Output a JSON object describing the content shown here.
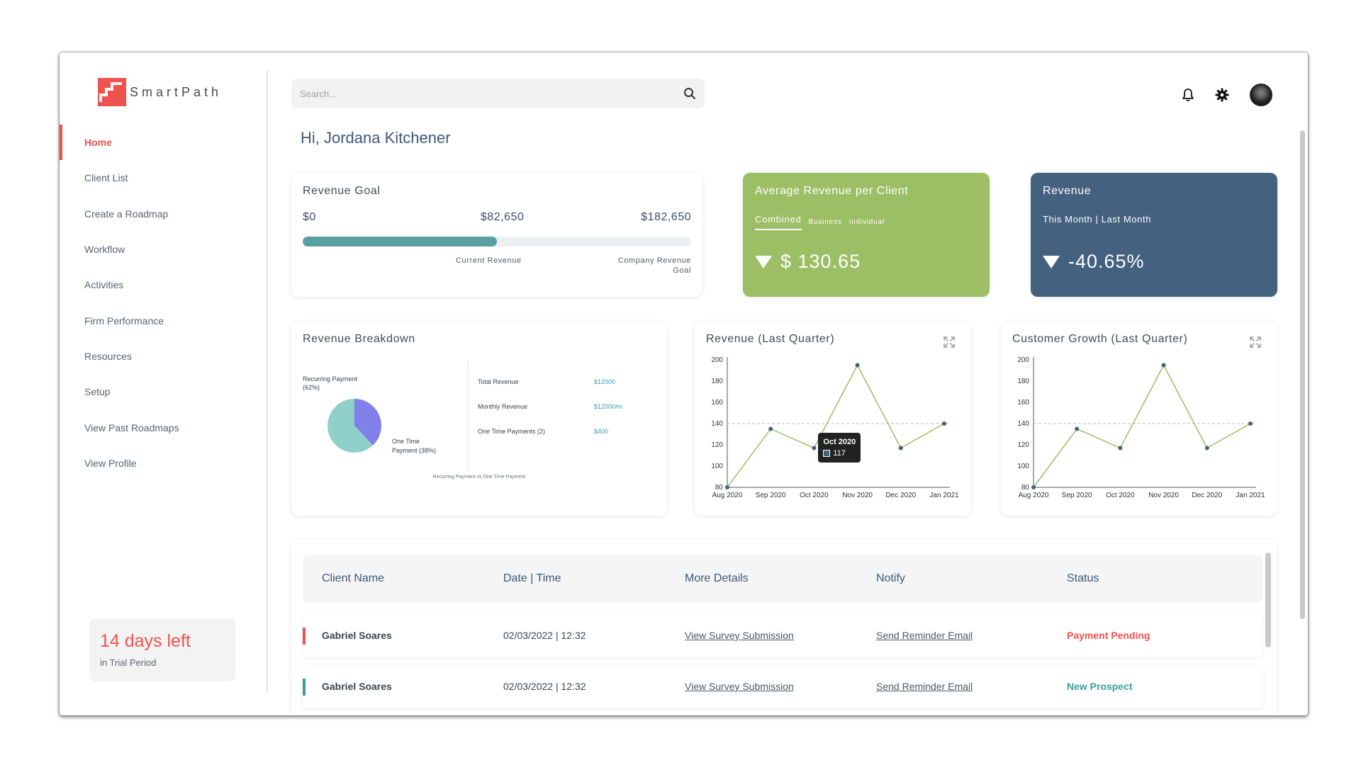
{
  "brand": {
    "name": "SmartPath",
    "logo_color": "#ef5350"
  },
  "sidebar": {
    "items": [
      {
        "label": "Home",
        "active": true
      },
      {
        "label": "Client List"
      },
      {
        "label": "Create a Roadmap"
      },
      {
        "label": "Workflow"
      },
      {
        "label": "Activities"
      },
      {
        "label": "Firm Performance"
      },
      {
        "label": "Resources"
      },
      {
        "label": "Setup"
      },
      {
        "label": "View Past Roadmaps"
      },
      {
        "label": "View Profile"
      }
    ],
    "trial": {
      "days": "14 days left",
      "subtitle": "in Trial Period"
    }
  },
  "header": {
    "search_placeholder": "Search...",
    "icons": [
      "bell-icon",
      "gear-icon",
      "avatar"
    ]
  },
  "greeting": "Hi, Jordana Kitchener",
  "revenue_goal": {
    "title": "Revenue Goal",
    "min_label": "$0",
    "current_label": "$82,650",
    "goal_label": "$182,650",
    "progress_fraction": 0.5,
    "current_caption": "Current Revenue",
    "goal_caption_1": "Company Revenue",
    "goal_caption_2": "Goal",
    "bar_color": "#5a9f9f"
  },
  "avg_revenue": {
    "title": "Average Revenue per Client",
    "tabs": [
      "Combined",
      "Business",
      "Individual"
    ],
    "value": "$ 130.65",
    "color": "#9cbe65"
  },
  "revenue": {
    "title": "Revenue",
    "tab_label": "This Month | Last Month",
    "value": "-40.65%",
    "color": "#44617f"
  },
  "breakdown": {
    "title": "Revenue Breakdown",
    "recurring_label_1": "Recurring Payment",
    "recurring_label_2": "(62%)",
    "onetime_label_1": "One Time",
    "onetime_label_2": "Payment (38%)",
    "caption": "Recurring Payment vs One Time Payment",
    "rows": [
      {
        "label": "Total Revenue",
        "value": "$12000"
      },
      {
        "label": "Monthly Revenue",
        "value": "$12000/m"
      },
      {
        "label": "One Time Payments (2)",
        "value": "$400"
      }
    ]
  },
  "chart_data": [
    {
      "type": "pie",
      "categories": [
        "Recurring Payment",
        "One Time Payment"
      ],
      "values": [
        62,
        38
      ],
      "colors": [
        "#8fd0cb",
        "#8280ea"
      ]
    },
    {
      "type": "line",
      "title": "Revenue (Last Quarter)",
      "categories": [
        "Aug 2020",
        "Sep 2020",
        "Oct 2020",
        "Nov 2020",
        "Dec 2020",
        "Jan 2021"
      ],
      "values": [
        80,
        135,
        117,
        195,
        117,
        140
      ],
      "ylim": [
        80,
        200
      ],
      "yticks": [
        80,
        100,
        120,
        140,
        160,
        180,
        200
      ],
      "reference_line": 140,
      "tooltip": {
        "label": "Oct 2020",
        "value": "117"
      },
      "line_color": "#9cbe65",
      "point_color": "#44617f"
    },
    {
      "type": "line",
      "title": "Customer Growth (Last Quarter)",
      "categories": [
        "Aug 2020",
        "Sep 2020",
        "Oct 2020",
        "Nov 2020",
        "Dec 2020",
        "Jan 2021"
      ],
      "values": [
        80,
        135,
        117,
        195,
        117,
        140
      ],
      "ylim": [
        80,
        200
      ],
      "yticks": [
        80,
        100,
        120,
        140,
        160,
        180,
        200
      ],
      "reference_line": 140,
      "line_color": "#9cbe65",
      "point_color": "#44617f"
    }
  ],
  "table": {
    "headers": [
      "Client Name",
      "Date | Time",
      "More Details",
      "Notify",
      "Status"
    ],
    "rows": [
      {
        "name": "Gabriel Soares",
        "datetime": "02/03/2022 | 12:32",
        "details": "View Survey Submission",
        "notify": "Send Reminder Email",
        "status": "Payment Pending",
        "status_color": "#ef5350"
      },
      {
        "name": "Gabriel Soares",
        "datetime": "02/03/2022 | 12:32",
        "details": "View Survey Submission",
        "notify": "Send Reminder Email",
        "status": "New Prospect",
        "status_color": "#3a9f9a"
      }
    ]
  }
}
